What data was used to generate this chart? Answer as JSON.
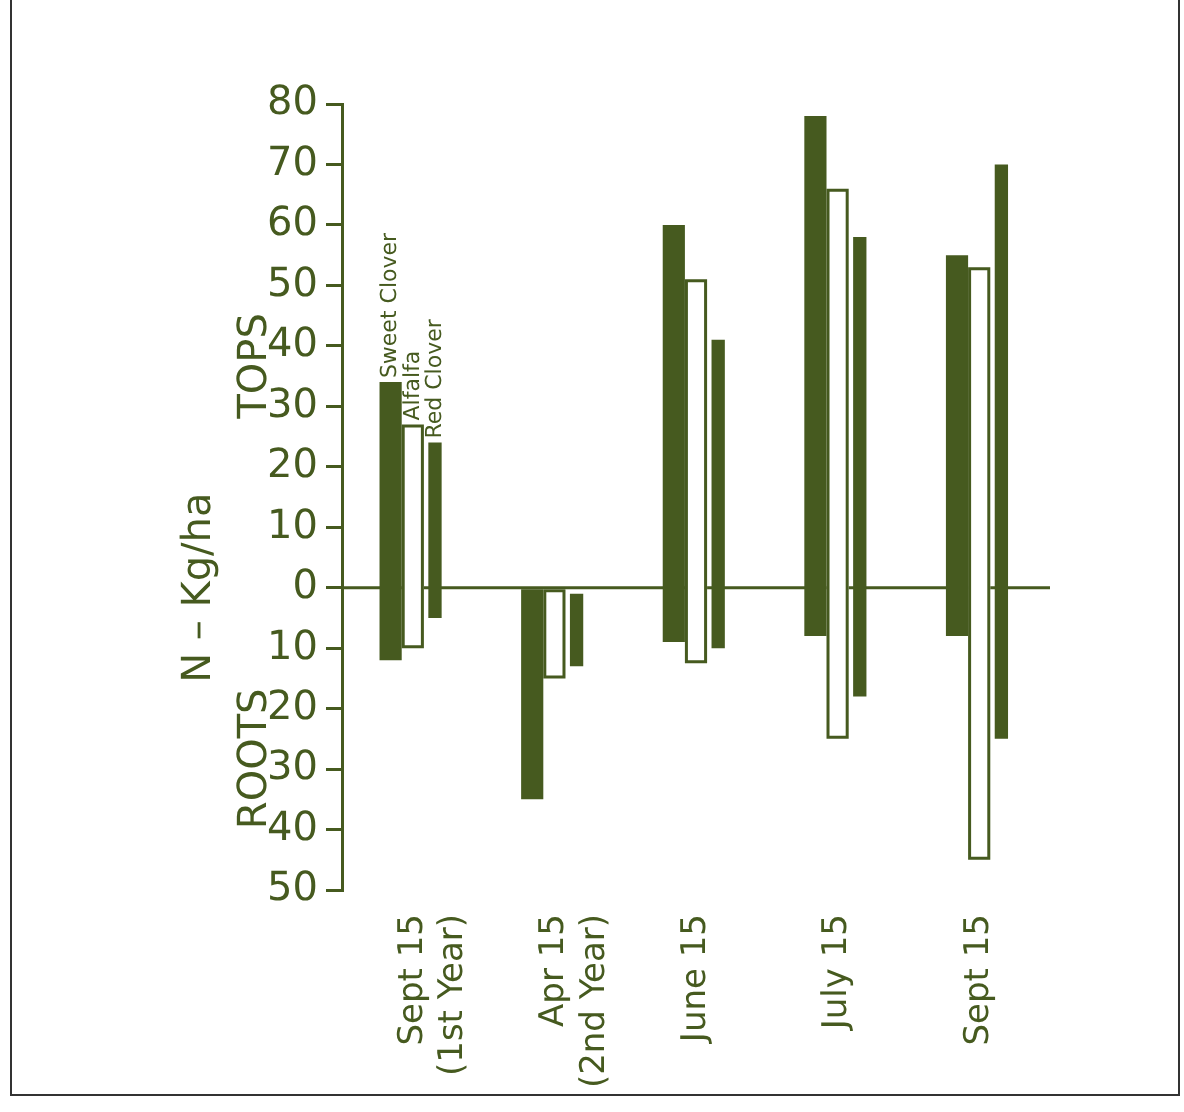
{
  "chart_data": {
    "type": "bar",
    "ylabel": "N – Kg/ha",
    "annotations": [
      "TOPS",
      "ROOTS"
    ],
    "categories": [
      "Sept 15\n(1st Year)",
      "Apr 15\n(2nd Year)",
      "June 15",
      "July 15",
      "Sept 15"
    ],
    "series": [
      {
        "name": "Sweet Clover",
        "color": "#465a1f",
        "base": [
          -12,
          -35,
          -9,
          -8,
          -8
        ],
        "values": [
          46,
          35,
          69,
          86,
          63
        ]
      },
      {
        "name": "Alfalfa",
        "color": "#ffffff",
        "base": [
          -10,
          -15,
          -12.5,
          -25,
          -45
        ],
        "values": [
          37,
          15,
          63.5,
          91,
          98
        ]
      },
      {
        "name": "Red Clover",
        "color": "#465a1f",
        "base": [
          -5,
          -13,
          -10,
          -18,
          -25
        ],
        "values": [
          29,
          12,
          51,
          76,
          95
        ]
      }
    ],
    "ylim": [
      -50,
      80
    ],
    "yticks": [
      {
        "value": -50,
        "label": "50"
      },
      {
        "value": -40,
        "label": "40"
      },
      {
        "value": -30,
        "label": "30"
      },
      {
        "value": -20,
        "label": "20"
      },
      {
        "value": -10,
        "label": "10"
      },
      0,
      10,
      20,
      30,
      40,
      50,
      60,
      70,
      80
    ],
    "grid": false,
    "legend": false
  }
}
